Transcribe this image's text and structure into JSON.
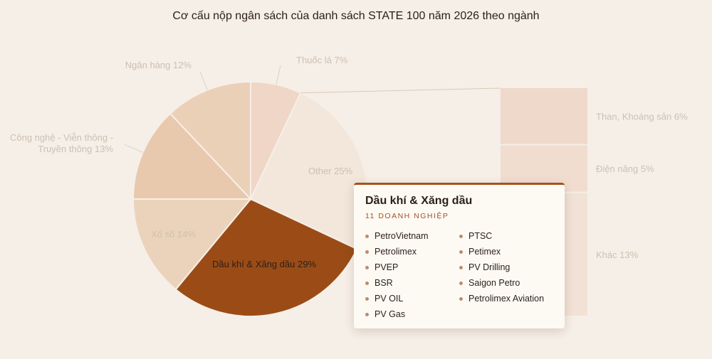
{
  "title": "Cơ cấu nộp ngân sách của danh sách STATE 100 năm 2026 theo ngành",
  "chart_data": {
    "type": "pie",
    "title": "Cơ cấu nộp ngân sách của danh sách STATE 100 năm 2026 theo ngành",
    "slices": [
      {
        "label": "Thuốc lá 7%",
        "value": 7,
        "color": "#f0d6c6"
      },
      {
        "label": "Other 25%",
        "value": 25,
        "color": "#f3e6da"
      },
      {
        "label": "Dầu khí & Xăng dầu 29%",
        "value": 29,
        "color": "#9b4c16"
      },
      {
        "label": "Xổ số 14%",
        "value": 14,
        "color": "#ebd3bb"
      },
      {
        "label": "Công nghệ - Viễn thông - Truyền thông 13%",
        "value": 13,
        "color": "#e8c9ae"
      },
      {
        "label": "Ngân hàng 12%",
        "value": 12,
        "color": "#ebd0b8"
      }
    ],
    "other_breakdown": [
      {
        "label": "Than, Khoáng sản 6%",
        "value": 6,
        "color": "#efd9cb"
      },
      {
        "label": "Điện năng 5%",
        "value": 5,
        "color": "#f0ddd0"
      },
      {
        "label": "Khác 13%",
        "value": 13,
        "color": "#f2e2d6"
      }
    ]
  },
  "tooltip": {
    "title": "Dầu khí & Xăng dầu",
    "count": "11 DOANH NGHIỆP",
    "companies_left": [
      "PetroVietnam",
      "Petrolimex",
      "PVEP",
      "BSR",
      "PV OIL",
      "PV Gas"
    ],
    "companies_right": [
      "PTSC",
      "Petimex",
      "PV Drilling",
      "Saigon Petro",
      "Petrolimex Aviation"
    ]
  }
}
